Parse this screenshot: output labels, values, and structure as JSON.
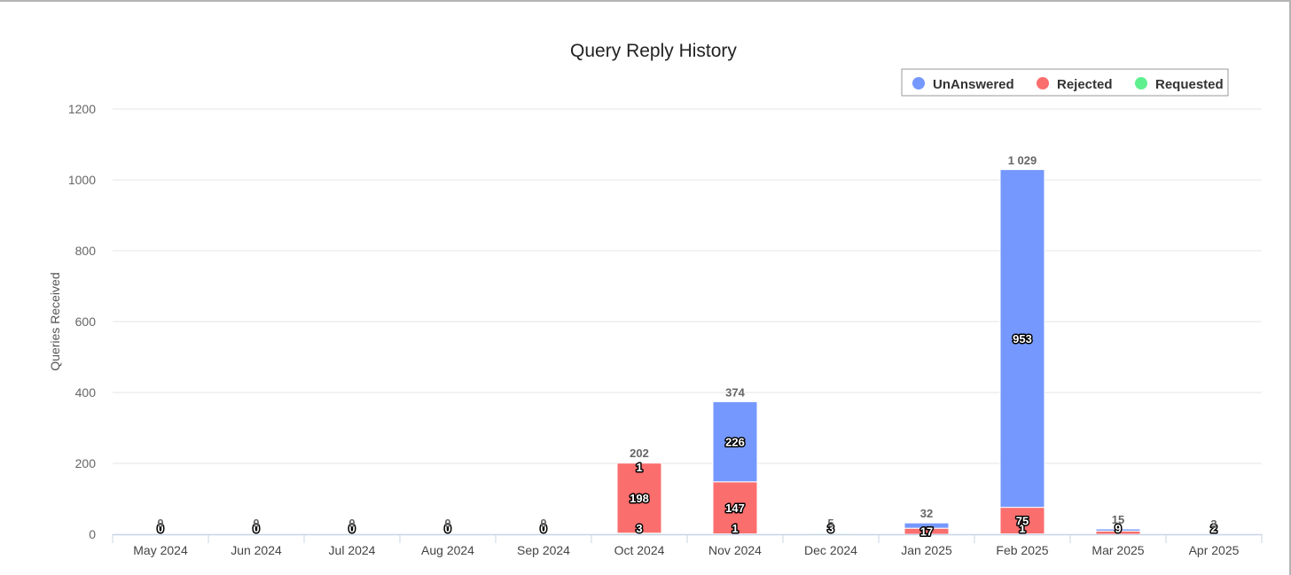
{
  "chart_data": {
    "type": "bar",
    "stacked": true,
    "title": "Query Reply History",
    "ylabel": "Queries Received",
    "xlabel": "",
    "ylim": [
      0,
      1200
    ],
    "yticks": [
      0,
      200,
      400,
      600,
      800,
      1000,
      1200
    ],
    "ytick_labels": [
      "0",
      "200",
      "400",
      "600",
      "800",
      "1000",
      "1200"
    ],
    "grid": true,
    "legend_position": "top-right",
    "categories": [
      "May 2024",
      "Jun 2024",
      "Jul 2024",
      "Aug 2024",
      "Sep 2024",
      "Oct 2024",
      "Nov 2024",
      "Dec 2024",
      "Jan 2025",
      "Feb 2025",
      "Mar 2025",
      "Apr 2025"
    ],
    "series": [
      {
        "name": "UnAnswered",
        "color": "#7598fe",
        "values": [
          0,
          0,
          0,
          0,
          0,
          1,
          226,
          0,
          15,
          953,
          6,
          0
        ],
        "labels": [
          "0",
          "0",
          "0",
          "0",
          "0",
          "1",
          "226",
          "0",
          "15",
          "953",
          "6",
          "0"
        ]
      },
      {
        "name": "Rejected",
        "color": "#fb6e6e",
        "values": [
          0,
          0,
          0,
          0,
          0,
          198,
          147,
          2,
          17,
          75,
          9,
          1
        ],
        "labels": [
          "0",
          "0",
          "0",
          "0",
          "0",
          "198",
          "147",
          "2",
          "17",
          "75",
          "9",
          "1"
        ]
      },
      {
        "name": "Requested",
        "color": "#5ef08f",
        "values": [
          0,
          0,
          0,
          0,
          0,
          3,
          1,
          3,
          0,
          1,
          0,
          2
        ],
        "labels": [
          "0",
          "0",
          "0",
          "0",
          "0",
          "3",
          "1",
          "3",
          "0",
          "1",
          "0",
          "2"
        ]
      }
    ],
    "totals": [
      0,
      0,
      0,
      0,
      0,
      202,
      374,
      5,
      32,
      1029,
      15,
      3
    ],
    "total_labels": [
      "0",
      "0",
      "0",
      "0",
      "0",
      "202",
      "374",
      "5",
      "32",
      "1 029",
      "15",
      "3"
    ]
  }
}
